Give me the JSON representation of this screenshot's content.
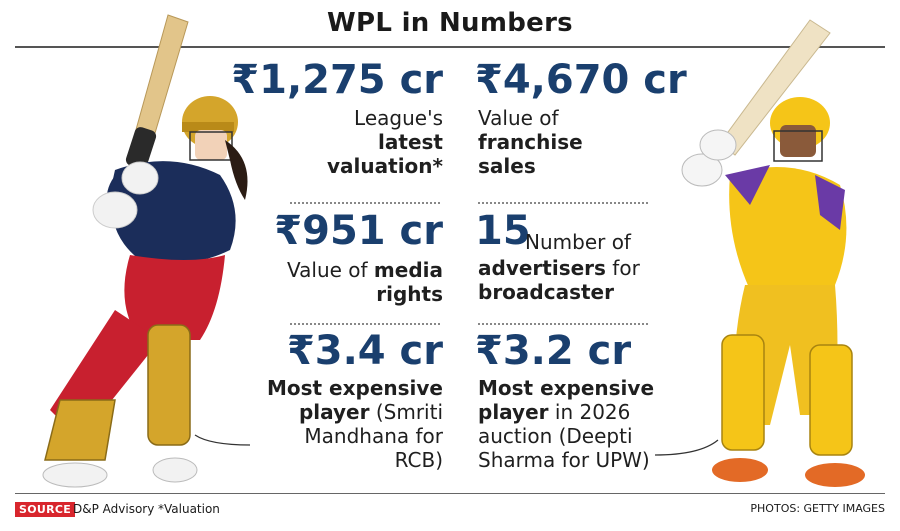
{
  "title": "WPL in Numbers",
  "stats": {
    "league_valuation": {
      "value": "₹1,275 cr",
      "line1": "League's",
      "line2": "latest",
      "line3": "valuation*"
    },
    "franchise_sales": {
      "value": "₹4,670 cr",
      "line1": "Value of",
      "line2": "franchise",
      "line3": "sales"
    },
    "media_rights": {
      "value": "₹951 cr",
      "line1_plain": "Value of ",
      "line1_bold": "media",
      "line2": "rights"
    },
    "advertisers": {
      "value": "15",
      "line1": "Number of",
      "line2_bold": "advertisers",
      "line2_plain": " for",
      "line3": "broadcaster"
    },
    "expensive_player": {
      "value": "₹3.4 cr",
      "line1": "Most expensive",
      "line2_bold": "player",
      "line2_plain": " (Smriti",
      "line3": "Mandhana for",
      "line4": "RCB)"
    },
    "expensive_auction": {
      "value": "₹3.2 cr",
      "line1": "Most expensive",
      "line2_bold": "player",
      "line2_plain": " in 2026",
      "line3": "auction (Deepti",
      "line4": "Sharma for UPW)"
    }
  },
  "footer": {
    "source_label": "SOURCE",
    "source_text": "D&P Advisory",
    "note": "*Valuation",
    "photos": "PHOTOS: GETTY IMAGES"
  },
  "colors": {
    "value_blue": "#1a3f6e",
    "source_red": "#d8262d",
    "rcb_red": "#c8202f",
    "rcb_navy": "#1b2d5a",
    "upw_yellow": "#f5c518",
    "upw_purple": "#6a3aa6"
  },
  "icons": {
    "left_player": "rcb-batter-illustration",
    "right_player": "upw-batter-illustration"
  }
}
